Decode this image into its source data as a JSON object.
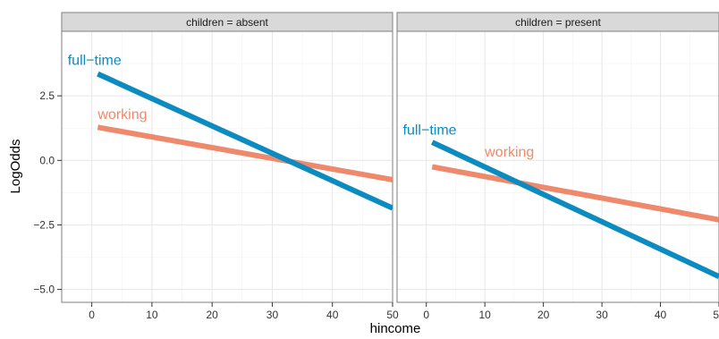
{
  "chart_data": {
    "type": "line",
    "xlabel": "hincome",
    "ylabel": "LogOdds",
    "xlim": [
      -5,
      50
    ],
    "ylim": [
      -5.5,
      5
    ],
    "x_ticks": [
      0,
      10,
      20,
      30,
      40,
      50
    ],
    "y_ticks": [
      -5.0,
      -2.5,
      0.0,
      2.5
    ],
    "y_tick_labels": [
      "−5.0",
      "−2.5",
      "0.0",
      "2.5"
    ],
    "colors": {
      "full-time": "#0b8bbf",
      "working": "#ee8a6b"
    },
    "panels": [
      {
        "strip": "children = absent",
        "series": [
          {
            "name": "working",
            "x": [
              1,
              50
            ],
            "y": [
              1.28,
              -0.75
            ],
            "label_at": [
              1,
              1.6
            ]
          },
          {
            "name": "full−time",
            "x": [
              1,
              50
            ],
            "y": [
              3.35,
              -1.85
            ],
            "label_at": [
              -4,
              3.7
            ]
          }
        ]
      },
      {
        "strip": "children = present",
        "series": [
          {
            "name": "working",
            "x": [
              1,
              50
            ],
            "y": [
              -0.25,
              -2.3
            ],
            "label_at": [
              10,
              0.15
            ]
          },
          {
            "name": "full−time",
            "x": [
              1,
              50
            ],
            "y": [
              0.7,
              -4.5
            ],
            "label_at": [
              -4,
              1.0
            ]
          }
        ]
      }
    ]
  }
}
